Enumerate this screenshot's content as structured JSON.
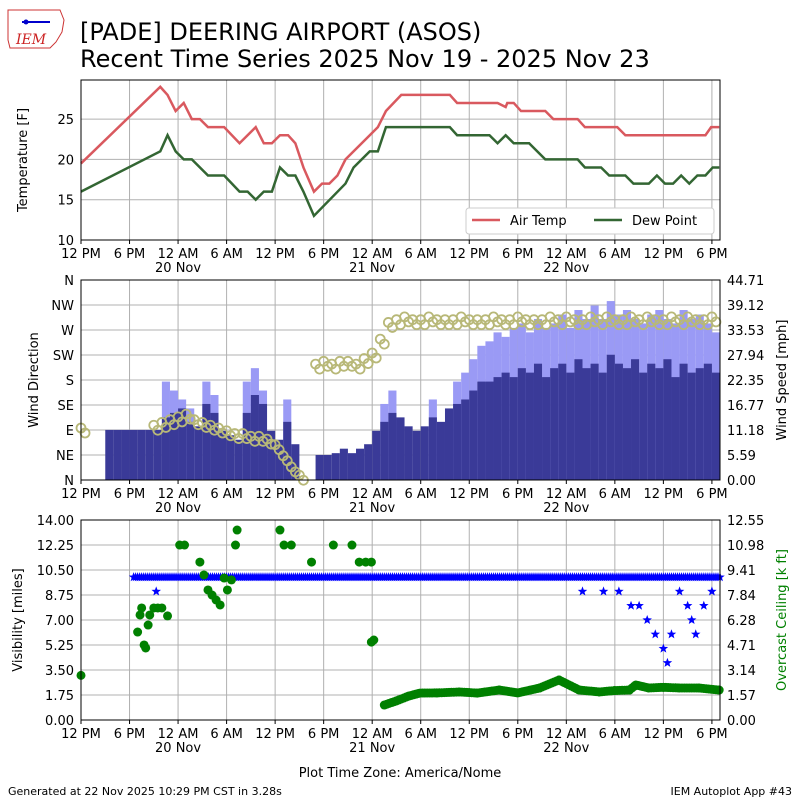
{
  "title_line1": "[PADE] DEERING AIRPORT (ASOS)",
  "title_line2": "Recent Time Series 2025 Nov 19 - 2025 Nov 23",
  "logo_text": "IEM",
  "footer_left": "Generated at 22 Nov 2025 10:29 PM CST in 3.28s",
  "footer_right": "IEM Autoplot App #43",
  "xlabel": "Plot Time Zone: America/Nome",
  "chart_data": [
    {
      "type": "line",
      "ylabel": "Temperature [F]",
      "ylim": [
        10,
        29.85
      ],
      "xlim_hours": [
        0,
        79
      ],
      "yticks": [
        10,
        15,
        20,
        25
      ],
      "legend": {
        "placement": "lower-right",
        "entries": [
          "Air Temp",
          "Dew Point"
        ]
      },
      "x_time_labels": [
        "12 PM",
        "6 PM",
        "12 AM",
        "6 AM",
        "12 PM",
        "6 PM",
        "12 AM",
        "6 AM",
        "12 PM",
        "6 PM",
        "12 AM",
        "6 AM",
        "12 PM",
        "6 PM"
      ],
      "x_date_labels": [
        {
          "hour": 12,
          "label": "20 Nov"
        },
        {
          "hour": 36,
          "label": "21 Nov"
        },
        {
          "hour": 60,
          "label": "22 Nov"
        }
      ],
      "series": [
        {
          "name": "Air Temp",
          "color": "#d9595f",
          "points": [
            [
              0,
              19.5
            ],
            [
              9.8,
              29
            ],
            [
              10.7,
              28
            ],
            [
              11.7,
              26
            ],
            [
              12.7,
              27
            ],
            [
              13.7,
              25
            ],
            [
              14.7,
              25
            ],
            [
              15.7,
              24
            ],
            [
              17.7,
              24
            ],
            [
              19.6,
              22
            ],
            [
              21.6,
              24
            ],
            [
              22.6,
              22
            ],
            [
              23.6,
              22
            ],
            [
              24.6,
              23
            ],
            [
              25.6,
              23
            ],
            [
              26.5,
              22
            ],
            [
              27.5,
              19
            ],
            [
              28.8,
              16
            ],
            [
              29.8,
              17
            ],
            [
              30.7,
              17
            ],
            [
              31.7,
              18
            ],
            [
              32.7,
              20
            ],
            [
              35.7,
              23
            ],
            [
              36.7,
              24
            ],
            [
              37.7,
              26
            ],
            [
              39.6,
              28
            ],
            [
              45.6,
              28
            ],
            [
              46.5,
              27
            ],
            [
              51.5,
              27
            ],
            [
              52.5,
              26.5
            ],
            [
              52.7,
              27
            ],
            [
              53.5,
              27
            ],
            [
              54.4,
              26
            ],
            [
              57.4,
              26
            ],
            [
              58.4,
              25
            ],
            [
              61.4,
              25
            ],
            [
              62.3,
              24
            ],
            [
              66.3,
              24
            ],
            [
              67.3,
              23
            ],
            [
              77.2,
              23
            ],
            [
              77.9,
              24
            ],
            [
              78.9,
              24
            ]
          ]
        },
        {
          "name": "Dew Point",
          "color": "#336633",
          "points": [
            [
              0,
              16
            ],
            [
              9.8,
              21
            ],
            [
              10.7,
              23
            ],
            [
              11.7,
              21
            ],
            [
              12.7,
              20
            ],
            [
              13.7,
              20
            ],
            [
              15.7,
              18
            ],
            [
              17.7,
              18
            ],
            [
              19.6,
              16
            ],
            [
              20.6,
              16
            ],
            [
              21.6,
              15
            ],
            [
              22.6,
              16
            ],
            [
              23.6,
              16
            ],
            [
              24.6,
              19
            ],
            [
              25.6,
              18
            ],
            [
              26.5,
              18
            ],
            [
              27.5,
              16
            ],
            [
              28.8,
              13
            ],
            [
              32.7,
              17
            ],
            [
              33.7,
              19
            ],
            [
              35.7,
              21
            ],
            [
              36.7,
              21
            ],
            [
              37.7,
              24
            ],
            [
              45.6,
              24
            ],
            [
              46.5,
              23
            ],
            [
              50.5,
              23
            ],
            [
              51.5,
              22
            ],
            [
              52.5,
              23
            ],
            [
              53.5,
              22
            ],
            [
              55.4,
              22
            ],
            [
              57.4,
              20
            ],
            [
              61.4,
              20
            ],
            [
              62.3,
              19
            ],
            [
              64.3,
              19
            ],
            [
              65.3,
              18
            ],
            [
              67.3,
              18
            ],
            [
              68.3,
              17
            ],
            [
              70.2,
              17
            ],
            [
              71.2,
              18
            ],
            [
              72.2,
              17
            ],
            [
              73.2,
              17
            ],
            [
              74.2,
              18
            ],
            [
              75.2,
              17
            ],
            [
              76.2,
              18
            ],
            [
              77.2,
              18
            ],
            [
              78.1,
              19
            ],
            [
              78.9,
              19
            ]
          ]
        }
      ]
    },
    {
      "type": "bar",
      "ylabel": "Wind Direction",
      "y2label": "Wind Speed [mph]",
      "xlim_hours": [
        0,
        79
      ],
      "direction_ticks": [
        "N",
        "NE",
        "E",
        "SE",
        "S",
        "SW",
        "W",
        "NW",
        "N"
      ],
      "speed_ticks": [
        "0.00",
        "5.59",
        "11.18",
        "16.77",
        "22.35",
        "27.94",
        "33.53",
        "39.12",
        "44.71"
      ],
      "speed_max": 44.71,
      "colors": {
        "speed": "#3a3a98",
        "gust": "#9a9af5",
        "direction": "#b8b878"
      },
      "speed_hourly": [
        0,
        0,
        0,
        11.2,
        11.2,
        11.2,
        11.2,
        11.2,
        11.2,
        11.2,
        14,
        15,
        16,
        13,
        12,
        17,
        15,
        11,
        10,
        9,
        15,
        19,
        17,
        11,
        9,
        13,
        8,
        0,
        0,
        5.6,
        5.6,
        6,
        7,
        6,
        7,
        8,
        11,
        13,
        15,
        14,
        12,
        11,
        12,
        14,
        13,
        16,
        17,
        18,
        20,
        22,
        22,
        23,
        24,
        23,
        25,
        24,
        26,
        23,
        25,
        26,
        24,
        27,
        25,
        26,
        24,
        28,
        26,
        25,
        27,
        24,
        26,
        25,
        27,
        23,
        26,
        24,
        25,
        26,
        24
      ],
      "gust_hourly": [
        0,
        0,
        0,
        0,
        0,
        0,
        0,
        0,
        0,
        0,
        22,
        20,
        18,
        16,
        0,
        22,
        19,
        0,
        0,
        0,
        22,
        25,
        20,
        0,
        0,
        18,
        0,
        0,
        0,
        0,
        0,
        0,
        0,
        0,
        0,
        0,
        0,
        17,
        20,
        0,
        0,
        0,
        0,
        18,
        0,
        0,
        22,
        24,
        27,
        30,
        31,
        33,
        32,
        34,
        35,
        33,
        36,
        34,
        35,
        37,
        34,
        38,
        36,
        39,
        36,
        40,
        37,
        38,
        36,
        35,
        37,
        38,
        36,
        35,
        38,
        36,
        37,
        35,
        33
      ],
      "direction_hourly": [
        90,
        null,
        null,
        null,
        null,
        null,
        null,
        null,
        null,
        95,
        100,
        105,
        110,
        115,
        105,
        100,
        95,
        90,
        85,
        80,
        80,
        75,
        75,
        70,
        60,
        40,
        20,
        5,
        null,
        205,
        210,
        205,
        210,
        210,
        205,
        215,
        225,
        250,
        280,
        285,
        290,
        285,
        285,
        290,
        285,
        285,
        285,
        290,
        285,
        285,
        285,
        290,
        285,
        285,
        290,
        285,
        285,
        285,
        290,
        285,
        290,
        285,
        285,
        290,
        285,
        290,
        285,
        285,
        290,
        285,
        290,
        285,
        285,
        290,
        285,
        290,
        285,
        285,
        290
      ]
    },
    {
      "type": "scatter",
      "ylabel": "Visibility [miles]",
      "y2label": "Overcast Ceiling [k ft]",
      "xlim_hours": [
        0,
        79
      ],
      "vis_ticks": [
        "0.00",
        "1.75",
        "3.50",
        "5.25",
        "7.00",
        "8.75",
        "10.50",
        "12.25",
        "14.00"
      ],
      "vis_max": 14,
      "ceil_ticks": [
        "0.00",
        "1.57",
        "3.14",
        "4.71",
        "6.28",
        "7.84",
        "9.41",
        "10.98",
        "12.55"
      ],
      "ceil_max": 12.55,
      "colors": {
        "visibility": "#0000ff",
        "ceiling": "#008000"
      },
      "visibility": {
        "base": 10,
        "start": 6.5,
        "end": 79,
        "step": 0.5,
        "dips": [
          [
            9.3,
            9
          ],
          [
            62,
            9
          ],
          [
            64.6,
            9
          ],
          [
            66.5,
            9
          ],
          [
            68,
            8
          ],
          [
            69,
            8
          ],
          [
            70,
            7
          ],
          [
            71,
            6
          ],
          [
            72,
            5
          ],
          [
            72.5,
            4
          ],
          [
            73,
            6
          ],
          [
            74,
            9
          ],
          [
            75,
            8
          ],
          [
            75.5,
            7
          ],
          [
            76,
            6
          ],
          [
            77,
            8
          ],
          [
            78,
            9
          ]
        ]
      },
      "ceiling": [
        [
          0,
          2.8
        ],
        [
          7,
          5.52
        ],
        [
          7.3,
          6.59
        ],
        [
          7.5,
          7.03
        ],
        [
          7.8,
          4.71
        ],
        [
          8,
          4.52
        ],
        [
          8.3,
          5.96
        ],
        [
          8.5,
          6.59
        ],
        [
          9,
          7.03
        ],
        [
          9.5,
          7.03
        ],
        [
          10,
          7.03
        ],
        [
          10.7,
          6.53
        ],
        [
          12.2,
          10.98
        ],
        [
          12.8,
          10.98
        ],
        [
          14.7,
          9.91
        ],
        [
          15.2,
          9.1
        ],
        [
          15.7,
          8.16
        ],
        [
          16.2,
          7.84
        ],
        [
          16.7,
          7.53
        ],
        [
          17.2,
          7.22
        ],
        [
          17.7,
          8.91
        ],
        [
          18.1,
          8.16
        ],
        [
          18.6,
          8.79
        ],
        [
          19.1,
          10.98
        ],
        [
          19.3,
          11.92
        ],
        [
          24.6,
          11.92
        ],
        [
          25.1,
          10.98
        ],
        [
          26,
          10.98
        ],
        [
          28.5,
          9.91
        ],
        [
          31.2,
          10.98
        ],
        [
          33.5,
          10.98
        ],
        [
          34.4,
          9.91
        ],
        [
          35.2,
          9.91
        ],
        [
          35.9,
          9.91
        ],
        [
          35.9,
          4.89
        ],
        [
          36.2,
          5.02
        ],
        [
          37.5,
          0.94
        ],
        [
          39,
          1.2
        ],
        [
          40.5,
          1.5
        ],
        [
          41.9,
          1.69
        ],
        [
          44,
          1.7
        ],
        [
          46.8,
          1.76
        ],
        [
          49,
          1.69
        ],
        [
          51.7,
          1.88
        ],
        [
          54,
          1.7
        ],
        [
          56.7,
          2.01
        ],
        [
          59.1,
          2.51
        ],
        [
          61.6,
          1.88
        ],
        [
          64.1,
          1.76
        ],
        [
          66,
          1.85
        ],
        [
          67.8,
          1.88
        ],
        [
          68.6,
          2.2
        ],
        [
          70.2,
          2.01
        ],
        [
          72,
          2.05
        ],
        [
          74,
          2.01
        ],
        [
          76.4,
          2.01
        ],
        [
          78.9,
          1.88
        ]
      ]
    }
  ]
}
